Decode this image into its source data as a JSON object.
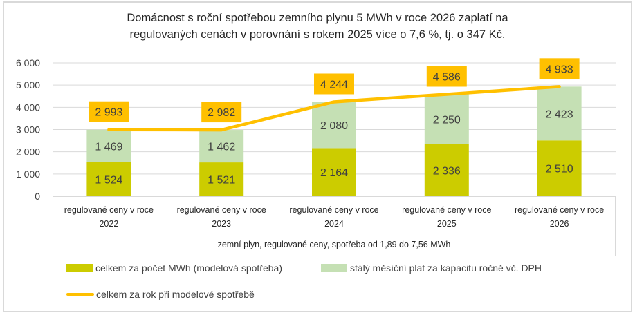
{
  "chart_data": {
    "type": "bar",
    "subtype": "stacked-bar-with-line",
    "title": "Domácnost s roční spotřebou zemního plynu 5 MWh v roce 2026 zaplatí na regulovaných cenách v porovnání s rokem 2025 více o 7,6 %, tj. o 347 Kč.",
    "title_lines": [
      "Domácnost s roční spotřebou zemního plynu 5 MWh v roce 2026 zaplatí na",
      "regulovaných cenách v porovnání s rokem 2025 více o 7,6 %, tj. o 347 Kč."
    ],
    "xlabel": "zemní plyn, regulované ceny, spotřeba od 1,89 do 7,56 MWh",
    "ylabel": "",
    "ylim": [
      0,
      6000
    ],
    "yticks": [
      0,
      1000,
      2000,
      3000,
      4000,
      5000,
      6000
    ],
    "ytick_labels": [
      "0",
      "1 000",
      "2 000",
      "3 000",
      "4 000",
      "5 000",
      "6 000"
    ],
    "grid": true,
    "legend_position": "bottom",
    "categories": [
      [
        "regulované ceny v roce",
        "2022"
      ],
      [
        "regulované ceny v roce",
        "2023"
      ],
      [
        "regulované ceny v roce",
        "2024"
      ],
      [
        "regulované ceny v roce",
        "2025"
      ],
      [
        "regulované ceny v roce",
        "2026"
      ]
    ],
    "series": [
      {
        "name": "celkem za počet MWh (modelová spotřeba)",
        "kind": "bar",
        "color": "#cccc00",
        "values": [
          1524,
          1521,
          2164,
          2336,
          2510
        ],
        "labels": [
          "1 524",
          "1 521",
          "2 164",
          "2 336",
          "2 510"
        ]
      },
      {
        "name": "stálý měsíční plat za kapacitu ročně vč. DPH",
        "kind": "bar",
        "color": "#c5e0b4",
        "values": [
          1469,
          1462,
          2080,
          2250,
          2423
        ],
        "labels": [
          "1 469",
          "1 462",
          "2 080",
          "2 250",
          "2 423"
        ]
      },
      {
        "name": "celkem za rok při modelové spotřebě",
        "kind": "line",
        "color": "#ffc000",
        "values": [
          2993,
          2982,
          4244,
          4586,
          4933
        ],
        "labels": [
          "2 993",
          "2 982",
          "4 244",
          "4 586",
          "4 933"
        ]
      }
    ]
  }
}
